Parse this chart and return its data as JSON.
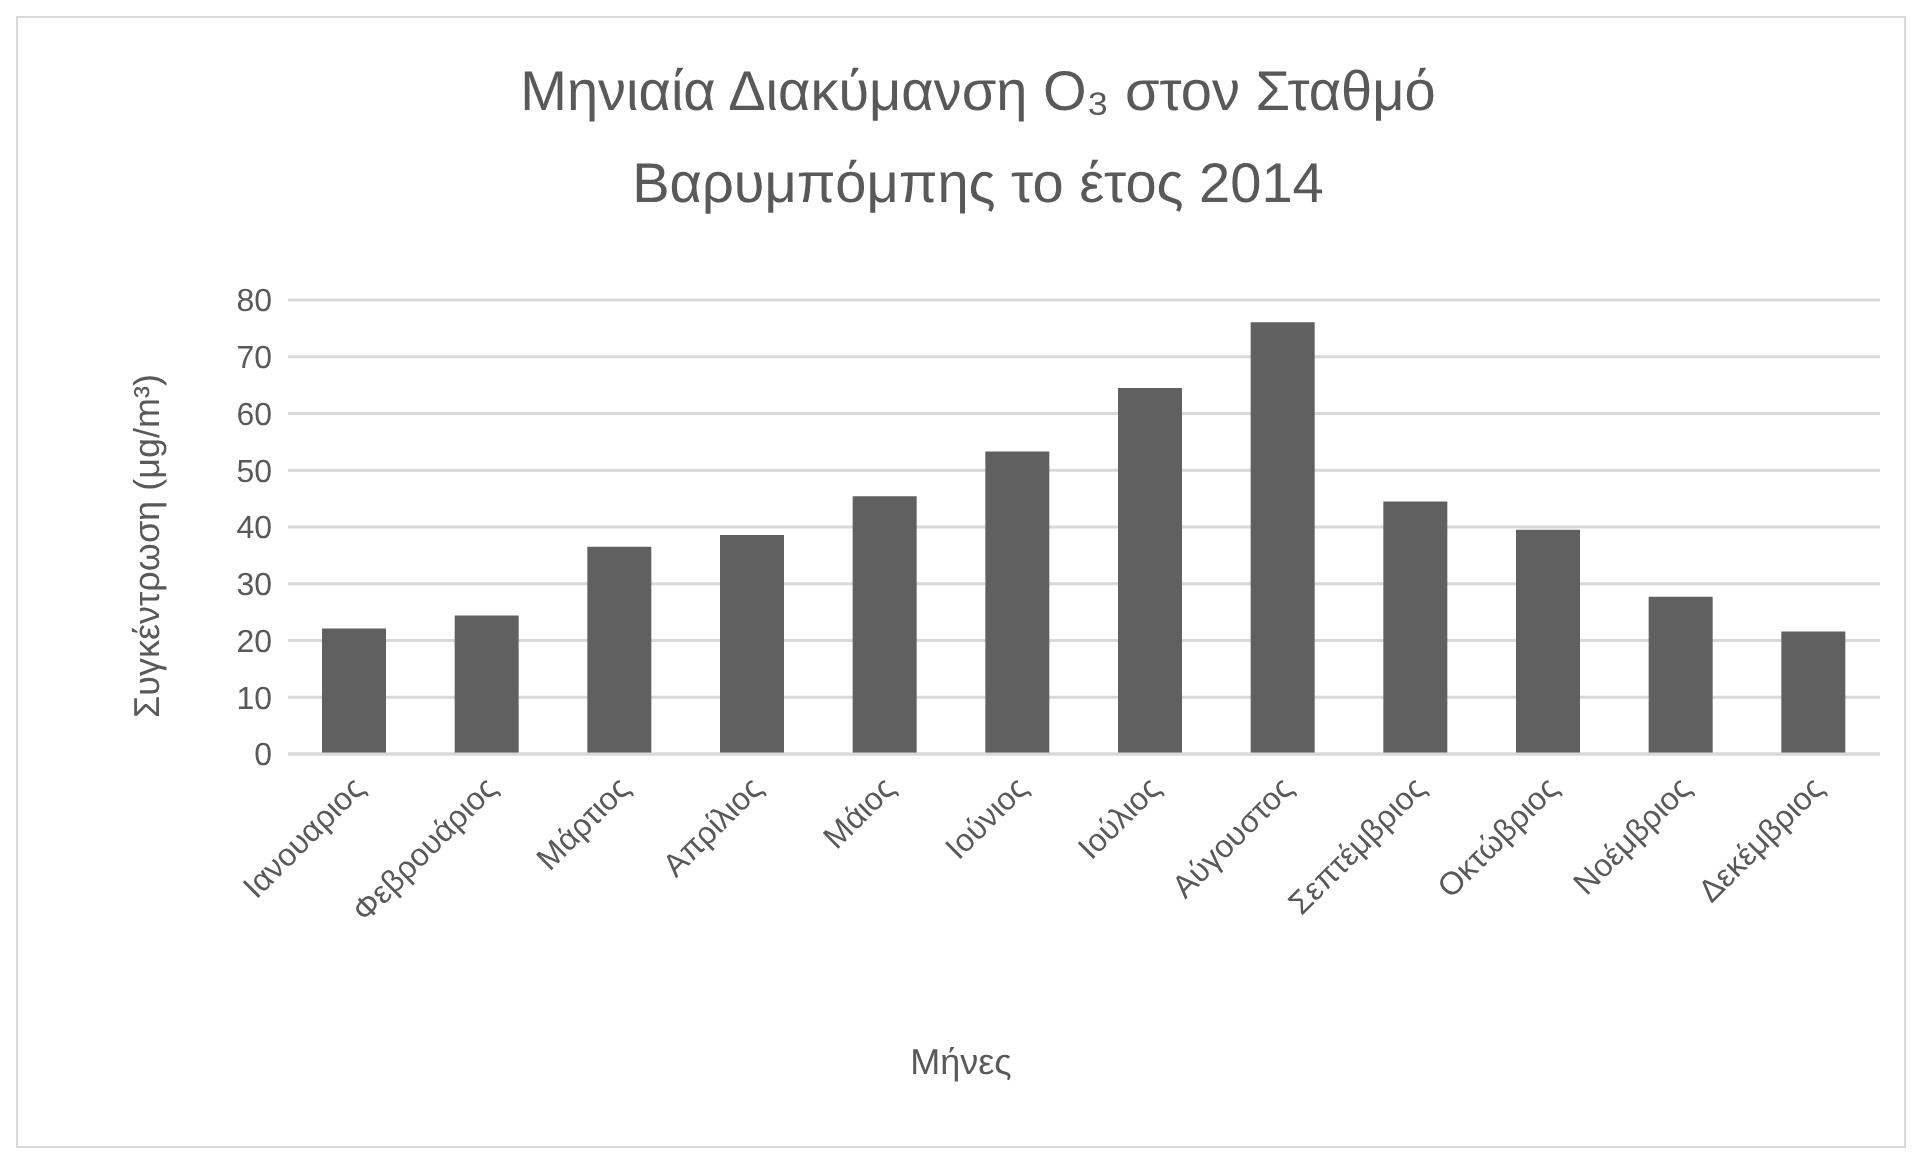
{
  "chart_data": {
    "type": "bar",
    "title": "Μηνιαία Διακύμανση O₃ στον Σταθμό Βαρυμπόμπης το έτος 2014",
    "xlabel": "Μήνες",
    "ylabel": "Συγκέντρωση (μg/m³)",
    "categories": [
      "Ιανουαριος",
      "Φεβρουάριος",
      "Μάρτιος",
      "Απρίλιος",
      "Μάιος",
      "Ιούνιος",
      "Ιούλιος",
      "Αύγουστος",
      "Σεπτέμβριος",
      "Οκτώβριος",
      "Νοέμβριος",
      "Δεκέμβριος"
    ],
    "values": [
      22.1,
      24.4,
      36.5,
      38.6,
      45.4,
      53.3,
      64.5,
      76.1,
      44.5,
      39.5,
      27.7,
      21.6
    ],
    "color": "#606060",
    "ylim": [
      0,
      80
    ],
    "yticks": [
      0,
      10,
      20,
      30,
      40,
      50,
      60,
      70,
      80
    ],
    "grid": "y"
  }
}
